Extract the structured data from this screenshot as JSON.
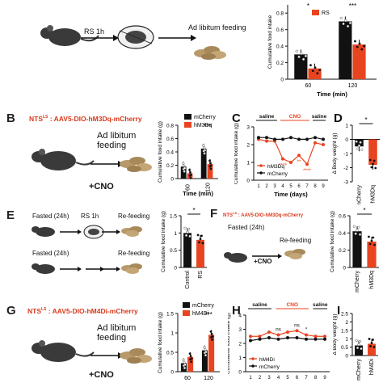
{
  "panels": {
    "A": {
      "schematic": {
        "step1": "RS 1h",
        "step2": "Ad libitum feeding"
      },
      "chart_data": {
        "type": "bar",
        "categories": [
          "60",
          "120"
        ],
        "series": [
          {
            "name": "",
            "values": [
              0.3,
              0.7
            ],
            "color": "#111111"
          },
          {
            "name": "RS",
            "values": [
              0.13,
              0.42
            ],
            "color": "#e8441f"
          }
        ],
        "xlabel": "Time (min)",
        "ylabel": "Cumulative food intake",
        "ylim": [
          0,
          0.9
        ],
        "sig": [
          "*",
          "***"
        ]
      }
    },
    "B": {
      "label": "B",
      "title_prefix": "NTS",
      "title_sup": "LS",
      "title_rest": " : AAV5-DIO-hM3Dq-mCherry",
      "schematic": {
        "feeding": "Ad libitum feeding",
        "cno": "+CNO"
      },
      "chart_data": {
        "type": "bar",
        "categories": [
          "60",
          "120"
        ],
        "series": [
          {
            "name": "mCherry",
            "values": [
              0.18,
              0.45
            ],
            "color": "#111111"
          },
          {
            "name": "hM3Dq",
            "values": [
              0.08,
              0.22
            ],
            "color": "#e8441f"
          }
        ],
        "xlabel": "Time (min)",
        "ylabel": "Cumulative food intake (g)",
        "ylim": [
          0,
          0.8
        ],
        "sig": [
          "",
          "***"
        ]
      }
    },
    "C": {
      "label": "C",
      "phases": [
        "saline",
        "CNO",
        "saline"
      ],
      "chart_data": {
        "type": "line",
        "x": [
          1,
          2,
          3,
          4,
          5,
          6,
          7,
          8,
          9
        ],
        "series": [
          {
            "name": "hM3Dq",
            "values": [
              2.3,
              2.2,
              2.2,
              1.2,
              1.0,
              1.4,
              0.9,
              2.1,
              2.0
            ],
            "color": "#e8441f"
          },
          {
            "name": "mCherry",
            "values": [
              2.4,
              2.4,
              2.3,
              2.3,
              2.4,
              2.3,
              2.3,
              2.4,
              2.3
            ],
            "color": "#111111"
          }
        ],
        "xlabel": "Time (days)",
        "ylabel": "Cumulative food intake (g)",
        "ylim": [
          0,
          3
        ],
        "sig": [
          "****",
          "**",
          "****"
        ]
      }
    },
    "D": {
      "label": "D",
      "chart_data": {
        "type": "bar",
        "categories": [
          "mCherry",
          "hM3Dq"
        ],
        "values": [
          -0.5,
          -1.8
        ],
        "colors": [
          "#111111",
          "#e8441f"
        ],
        "ylabel": "Δ Body weight (g)",
        "ylim": [
          -3,
          1
        ],
        "sig": "*"
      }
    },
    "E": {
      "label": "E",
      "row1": {
        "fasted": "Fasted (24h)",
        "rs": "RS 1h",
        "refeed": "Re-feeding"
      },
      "row2": {
        "fasted": "Fasted (24h)",
        "refeed": "Re-feeding"
      },
      "chart_data": {
        "type": "bar",
        "categories": [
          "Control",
          "RS"
        ],
        "values": [
          1.0,
          0.8
        ],
        "colors": [
          "#111111",
          "#e8441f"
        ],
        "ylabel": "Cumulative food intake (g)",
        "ylim": [
          0,
          1.5
        ],
        "sig": "*"
      }
    },
    "F": {
      "label": "F",
      "title_prefix": "NTS",
      "title_sup": "LS",
      "title_rest": " : AAV5-DIO-hM3Dq-mCherry",
      "schematic": {
        "fasted": "Fasted (24h)",
        "refeed": "Re-feeding",
        "cno": "+CNO"
      },
      "chart_data": {
        "type": "bar",
        "categories": [
          "mCherry",
          "hM3Dq"
        ],
        "values": [
          0.42,
          0.3
        ],
        "colors": [
          "#111111",
          "#e8441f"
        ],
        "ylabel": "Cumulative food intake (g)",
        "ylim": [
          0,
          0.6
        ],
        "sig": "*"
      }
    },
    "G": {
      "label": "G",
      "title_prefix": "NTS",
      "title_sup": "LS",
      "title_rest": " : AAV5-DIO-hM4Di-mCherry",
      "schematic": {
        "feeding": "Ad libitum feeding",
        "cno": "+CNO"
      },
      "chart_data": {
        "type": "bar",
        "categories": [
          "60",
          "120"
        ],
        "series": [
          {
            "name": "mCherry",
            "values": [
              0.22,
              0.55
            ],
            "color": "#111111"
          },
          {
            "name": "hM4Di",
            "values": [
              0.38,
              0.95
            ],
            "color": "#e8441f"
          }
        ],
        "ylabel": "Cumulative food intake (g)",
        "ylim": [
          0,
          1.5
        ],
        "sig": [
          "",
          "***"
        ]
      }
    },
    "H": {
      "label": "H",
      "phases": [
        "saline",
        "CNO",
        "saline"
      ],
      "chart_data": {
        "type": "line",
        "x": [
          1,
          2,
          3,
          4,
          5,
          6,
          7,
          8,
          9
        ],
        "series": [
          {
            "name": "hM4Di",
            "values": [
              2.5,
              2.5,
              2.8,
              2.6,
              2.8,
              2.9,
              2.6,
              2.5,
              2.5
            ],
            "color": "#e8441f"
          },
          {
            "name": "mCherry",
            "values": [
              2.2,
              2.3,
              2.4,
              2.3,
              2.4,
              2.4,
              2.3,
              2.3,
              2.3
            ],
            "color": "#111111"
          }
        ],
        "ylabel": "Cumulative food intake (g)",
        "ylim": [
          0,
          4
        ],
        "sig": [
          "ns",
          "ns",
          "*"
        ]
      }
    },
    "I": {
      "label": "I",
      "chart_data": {
        "type": "bar",
        "categories": [
          "mCherry",
          "hM4Di"
        ],
        "values": [
          0.6,
          0.7
        ],
        "colors": [
          "#111111",
          "#e8441f"
        ],
        "ylabel": "Δ Body weight (g)",
        "ylim": [
          0,
          2.5
        ]
      }
    }
  }
}
